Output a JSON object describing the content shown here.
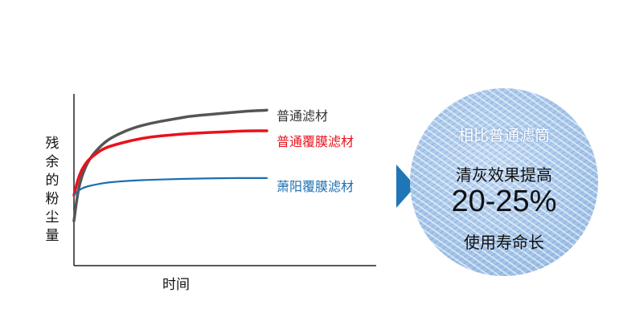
{
  "chart_data": {
    "type": "line",
    "title": "",
    "xlabel": "时间",
    "ylabel": "残余的粉尘量",
    "xlim": [
      0,
      100
    ],
    "ylim": [
      0,
      100
    ],
    "grid": false,
    "legend": "right",
    "series": [
      {
        "name": "普通滤材",
        "color": "#555555",
        "x": [
          0,
          2,
          4,
          7,
          10,
          15,
          20,
          30,
          40,
          50,
          60,
          70,
          80,
          90,
          100
        ],
        "y": [
          26,
          43,
          52,
          60,
          65,
          71,
          75,
          80,
          83,
          85,
          87,
          88,
          89,
          90,
          90.5
        ]
      },
      {
        "name": "普通覆膜滤材",
        "color": "#e8121b",
        "x": [
          0,
          2,
          4,
          7,
          10,
          15,
          20,
          30,
          40,
          50,
          60,
          70,
          80,
          90,
          100
        ],
        "y": [
          41,
          50,
          56,
          61,
          64,
          68,
          70,
          73,
          75,
          76,
          77,
          77.5,
          78,
          78.5,
          78.5
        ]
      },
      {
        "name": "萧阳覆膜滤材",
        "color": "#1d6fb0",
        "x": [
          0,
          2,
          5,
          10,
          15,
          20,
          30,
          40,
          50,
          60,
          70,
          80,
          90,
          100
        ],
        "y": [
          41,
          43.5,
          45.5,
          47,
          48,
          48.7,
          49.5,
          50,
          50.3,
          50.6,
          50.8,
          51,
          51,
          51
        ]
      }
    ]
  },
  "badge": {
    "top_text": "相比普通滤筒",
    "line1": "清灰效果提高",
    "percent": "20-25%",
    "line3": "使用寿命长"
  },
  "colors": {
    "arrow": "#1f76b6",
    "axis": "#222222"
  }
}
